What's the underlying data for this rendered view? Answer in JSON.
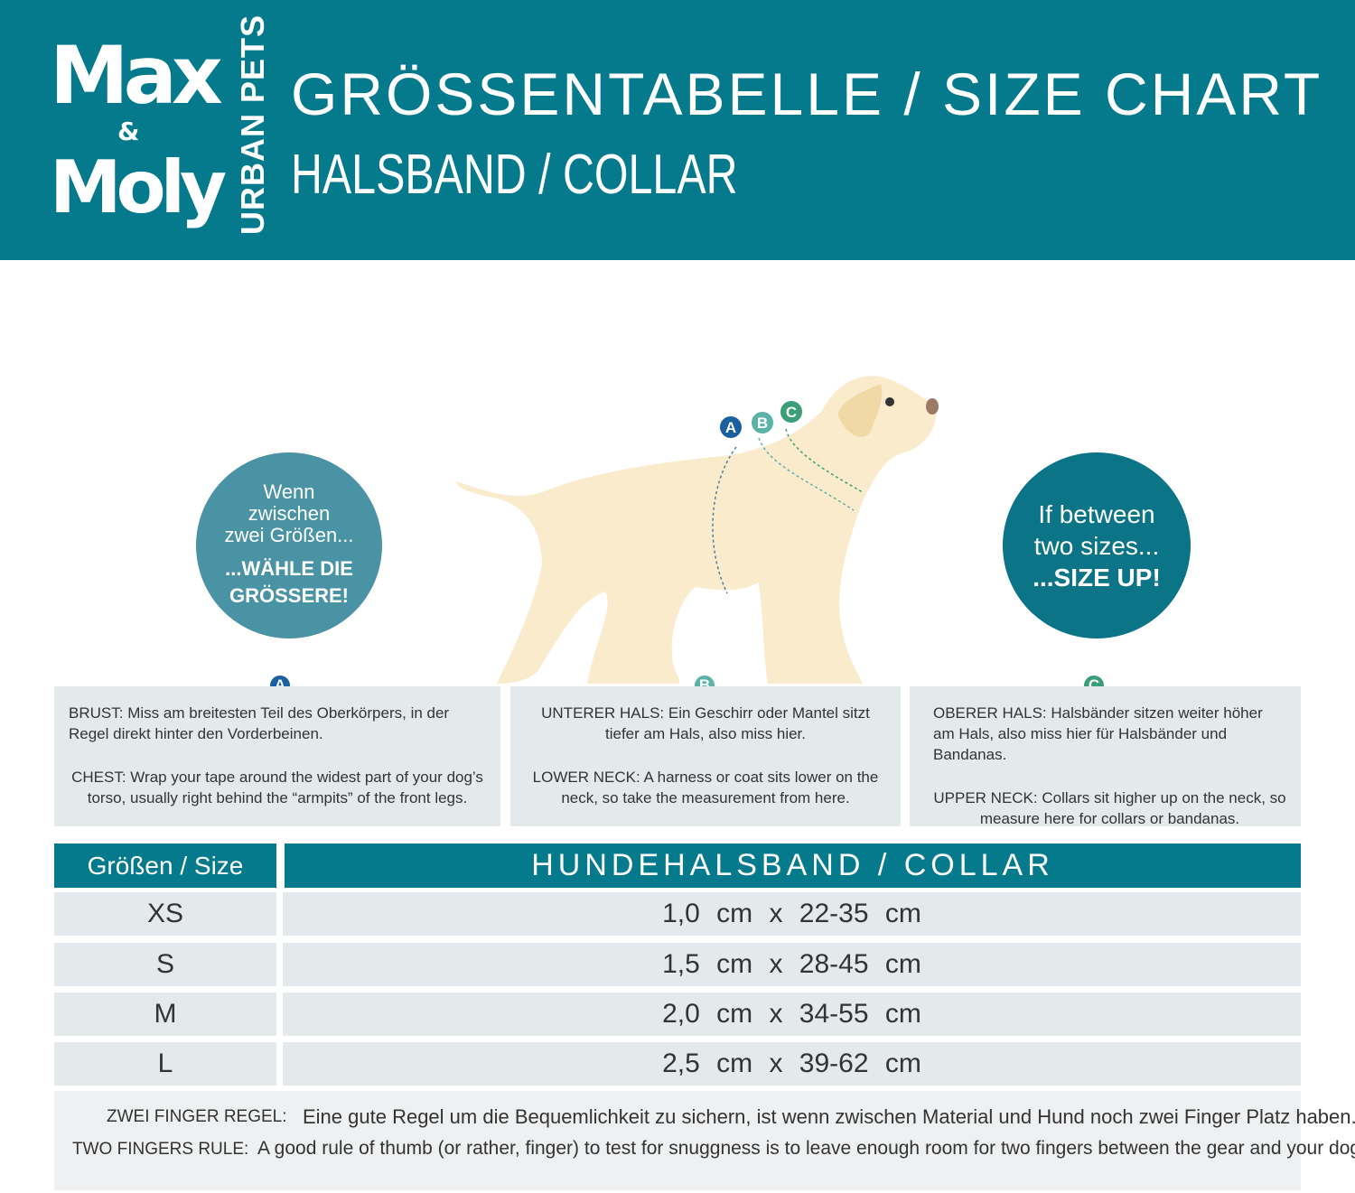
{
  "header": {
    "logo_text": "Max & Molly",
    "logo_sub": "URBAN PETS",
    "title": "GRÖSSENTABELLE / SIZE CHART",
    "subtitle": "HALSBAND / COLLAR"
  },
  "colors": {
    "brand": "#047a8c",
    "badge_a": "#1a5f9e",
    "badge_b": "#5bb3a8",
    "badge_c": "#3a9e78",
    "panel": "#e4e9ec"
  },
  "bubble_de": {
    "l1": "Wenn",
    "l2": "zwischen",
    "l3": "zwei Größen...",
    "l4": "...WÄHLE DIE",
    "l5": "GRÖSSERE!"
  },
  "bubble_en": {
    "l1": "If  between",
    "l2": "two  sizes...",
    "l3": "...SIZE UP!"
  },
  "diagram_badges": [
    "A",
    "B",
    "C"
  ],
  "measures": [
    {
      "badge": "A",
      "de_label": "BRUST:",
      "de_text": "Miss am breitesten Teil des Oberkörpers, in der Regel direkt hinter den Vorderbeinen.",
      "en_label": "CHEST:",
      "en_text": "Wrap your tape around the widest part of your dog’s torso, usually right behind the “armpits” of the front legs."
    },
    {
      "badge": "B",
      "de_label": "UNTERER HALS:",
      "de_text": "Ein Geschirr oder Mantel sitzt tiefer am Hals, also miss hier.",
      "en_label": "LOWER NECK:",
      "en_text": "A harness or coat sits lower on the neck, so take the measurement from here."
    },
    {
      "badge": "C",
      "de_label": "OBERER HALS:",
      "de_text": "Halsbänder sitzen weiter höher am Hals, also miss hier für Halsbänder und Bandanas.",
      "en_label": "UPPER NECK:",
      "en_text": "Collars sit higher up on the neck, so measure here for collars or bandanas."
    }
  ],
  "table": {
    "col_size": "Größen / Size",
    "col_collar": "HUNDEHALSBAND / COLLAR",
    "rows": [
      {
        "size": "XS",
        "value": "1,0 cm x 22-35 cm"
      },
      {
        "size": "S",
        "value": "1,5 cm x 28-45 cm"
      },
      {
        "size": "M",
        "value": "2,0 cm x 34-55 cm"
      },
      {
        "size": "L",
        "value": "2,5 cm x 39-62 cm"
      }
    ]
  },
  "footer": {
    "de_label": "ZWEI FINGER REGEL:",
    "de_text": "Eine gute Regel um die Bequemlichkeit zu sichern, ist wenn zwischen Material und Hund noch zwei Finger Platz haben.",
    "en_label": "TWO FINGERS RULE:",
    "en_text": "A good rule of thumb (or rather, finger) to test for snuggness is to leave enough room for two fingers between the gear and your dog."
  }
}
